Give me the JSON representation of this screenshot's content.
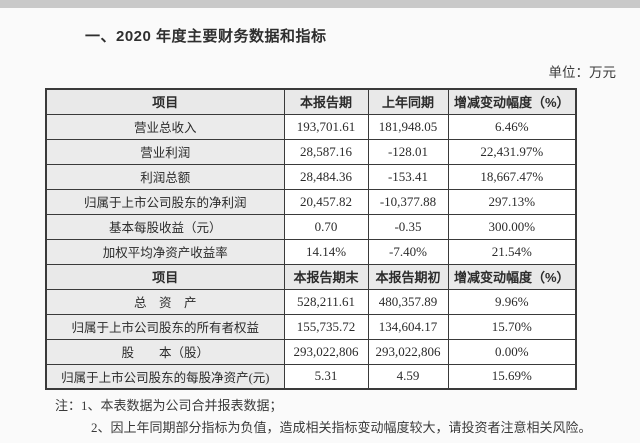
{
  "page": {
    "title": "一、2020 年度主要财务数据和指标",
    "unit_label": "单位：万元"
  },
  "table": {
    "sections": [
      {
        "header": [
          "项目",
          "本报告期",
          "上年同期",
          "增减变动幅度（%）"
        ],
        "rows": [
          [
            "营业总收入",
            "193,701.61",
            "181,948.05",
            "6.46%"
          ],
          [
            "营业利润",
            "28,587.16",
            "-128.01",
            "22,431.97%"
          ],
          [
            "利润总额",
            "28,484.36",
            "-153.41",
            "18,667.47%"
          ],
          [
            "归属于上市公司股东的净利润",
            "20,457.82",
            "-10,377.88",
            "297.13%"
          ],
          [
            "基本每股收益（元）",
            "0.70",
            "-0.35",
            "300.00%"
          ],
          [
            "加权平均净资产收益率",
            "14.14%",
            "-7.40%",
            "21.54%"
          ]
        ]
      },
      {
        "header": [
          "项目",
          "本报告期末",
          "本报告期初",
          "增减变动幅度（%）"
        ],
        "rows": [
          [
            "总　资　产",
            "528,211.61",
            "480,357.89",
            "9.96%"
          ],
          [
            "归属于上市公司股东的所有者权益",
            "155,735.72",
            "134,604.17",
            "15.70%"
          ],
          [
            "股　　本（股）",
            "293,022,806",
            "293,022,806",
            "0.00%"
          ],
          [
            "归属于上市公司股东的每股净资产(元)",
            "5.31",
            "4.59",
            "15.69%"
          ]
        ]
      }
    ]
  },
  "notes": {
    "prefix": "注：",
    "items": [
      "1、本表数据为公司合并报表数据；",
      "2、因上年同期部分指标为负值，造成相关指标变动幅度较大，请投资者注意相关风险。"
    ]
  },
  "colors": {
    "header_bg": "#e9e9e9",
    "label_col_bg": "#ebebeb",
    "border": "#3a3a3a",
    "text": "#2b2b2b",
    "page_bg": "#fafafa",
    "top_strip": "#c9c9c9"
  }
}
